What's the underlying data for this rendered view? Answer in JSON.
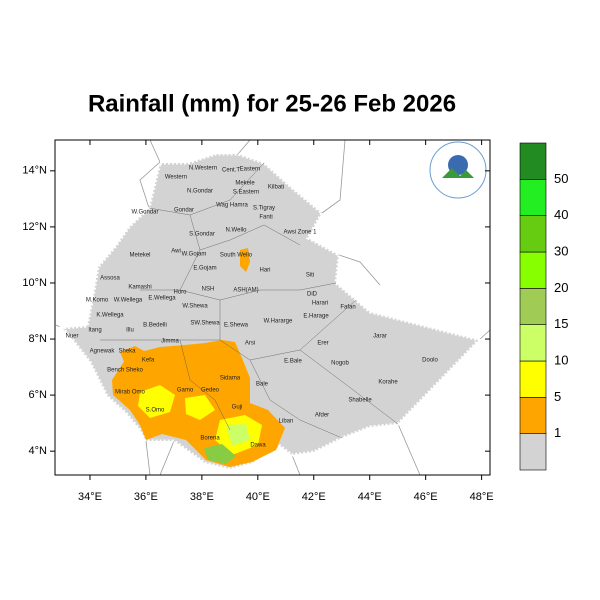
{
  "title": "Rainfall (mm) for 25-26 Feb 2026",
  "map": {
    "xlim": [
      32.75,
      48.3
    ],
    "ylim": [
      3.15,
      15.1
    ],
    "xticks": [
      {
        "value": 34,
        "label": "34°E"
      },
      {
        "value": 36,
        "label": "36°E"
      },
      {
        "value": 38,
        "label": "38°E"
      },
      {
        "value": 40,
        "label": "40°E"
      },
      {
        "value": 42,
        "label": "42°E"
      },
      {
        "value": 44,
        "label": "44°E"
      },
      {
        "value": 46,
        "label": "46°E"
      },
      {
        "value": 48,
        "label": "48°E"
      }
    ],
    "yticks": [
      {
        "value": 4,
        "label": "4°N"
      },
      {
        "value": 6,
        "label": "6°N"
      },
      {
        "value": 8,
        "label": "8°N"
      },
      {
        "value": 10,
        "label": "10°N"
      },
      {
        "value": 12,
        "label": "12°N"
      },
      {
        "value": 14,
        "label": "14°N"
      }
    ],
    "regions": [
      "Western",
      "N.Western",
      "Cent.T",
      "Eastern",
      "Mekele",
      "S.Eastern",
      "Kilbati",
      "Wag Hamra",
      "S.Tigray",
      "N.Gondar",
      "W.Gondar",
      "Gondar",
      "Fanti",
      "S.Gondar",
      "N.Wello",
      "Awsi Zone 1",
      "Metekel",
      "Awi",
      "W.Gojam",
      "South Wello",
      "E.Gojam",
      "Hari",
      "Siti",
      "Assosa",
      "Kamashi",
      "Horo",
      "NSH",
      "ASH(AM)",
      "DiD",
      "Harari",
      "M.Komo",
      "W.Wellega",
      "E.Wellega",
      "W.Shewa",
      "Fafan",
      "K.Wellega",
      "E.Harage",
      "W.Hararge",
      "SW.Shewa",
      "E.Shewa",
      "Jarar",
      "B.Bedelli",
      "Illu",
      "Itang",
      "Nuer",
      "Jimma",
      "Arsi",
      "Erer",
      "Agnewak",
      "Sheka",
      "Kefa",
      "E.Bale",
      "Nogob",
      "Doolo",
      "Bench Sheko",
      "Sidama",
      "Bale",
      "Korahe",
      "Mirab Omo",
      "Gamo",
      "Gedeo",
      "Shabelle",
      "S.Omo",
      "Afder",
      "Guji",
      "Liban",
      "Borena",
      "Dawa"
    ]
  },
  "colorbar": {
    "levels": [
      1,
      5,
      10,
      15,
      20,
      30,
      40,
      50
    ],
    "colors": [
      "#d3d3d3",
      "#ffa500",
      "#ffff00",
      "#ccff66",
      "#a0cc55",
      "#88ff00",
      "#66cc11",
      "#22ee22",
      "#228b22"
    ]
  }
}
